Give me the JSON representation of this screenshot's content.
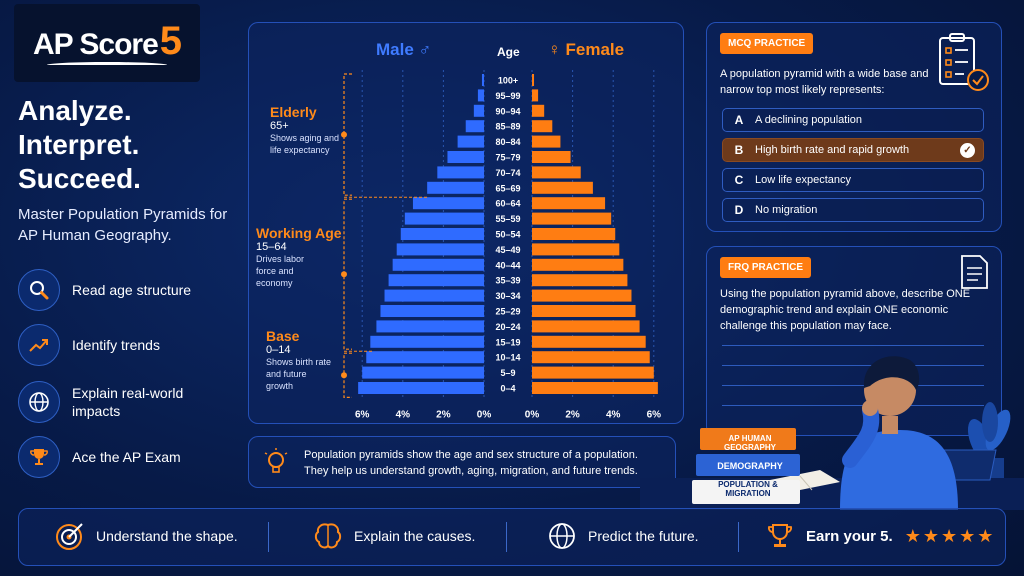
{
  "logo": {
    "text": "AP Score",
    "digit": "5"
  },
  "headline": [
    "Analyze.",
    "Interpret.",
    "Succeed."
  ],
  "subhead": "Master Population Pyramids for AP Human Geography.",
  "features": [
    {
      "icon": "magnifier-icon",
      "label": "Read age structure"
    },
    {
      "icon": "trend-up-icon",
      "label": "Identify trends"
    },
    {
      "icon": "globe-icon",
      "label": "Explain real-world impacts"
    },
    {
      "icon": "trophy-icon",
      "label": "Ace the AP Exam"
    }
  ],
  "chart_data": {
    "type": "bar",
    "orientation": "horizontal",
    "layout": "population-pyramid",
    "age_header": "Age",
    "categories": [
      "100+",
      "95–99",
      "90–94",
      "85–89",
      "80–84",
      "75–79",
      "70–74",
      "65–69",
      "60–64",
      "55–59",
      "50–54",
      "45–49",
      "40–44",
      "35–39",
      "30–34",
      "25–29",
      "20–24",
      "15–19",
      "10–14",
      "5–9",
      "0–4"
    ],
    "series": [
      {
        "name": "Male",
        "symbol": "♂",
        "color": "#2f6bff",
        "values": [
          0.1,
          0.3,
          0.5,
          0.9,
          1.3,
          1.8,
          2.3,
          2.8,
          3.5,
          3.9,
          4.1,
          4.3,
          4.5,
          4.7,
          4.9,
          5.1,
          5.3,
          5.6,
          5.8,
          6.0,
          6.2
        ]
      },
      {
        "name": "Female",
        "symbol": "♀",
        "color": "#ff7d12",
        "values": [
          0.1,
          0.3,
          0.6,
          1.0,
          1.4,
          1.9,
          2.4,
          3.0,
          3.6,
          3.9,
          4.1,
          4.3,
          4.5,
          4.7,
          4.9,
          5.1,
          5.3,
          5.6,
          5.8,
          6.0,
          6.2
        ]
      }
    ],
    "male_ticks": [
      "6%",
      "4%",
      "2%",
      "0%"
    ],
    "female_ticks": [
      "0%",
      "2%",
      "4%",
      "6%"
    ],
    "xlim": [
      0,
      6.5
    ],
    "grid": true,
    "annotations": [
      {
        "title": "Elderly",
        "range": "65+",
        "desc": "Shows aging and life expectancy"
      },
      {
        "title": "Working Age",
        "range": "15–64",
        "desc": "Drives labor force and economy"
      },
      {
        "title": "Base",
        "range": "0–14",
        "desc": "Shows birth rate and future growth"
      }
    ]
  },
  "info": {
    "icon": "lightbulb-icon",
    "text": "Population pyramids show the age and sex structure of a population. They help us understand growth, aging, migration, and future trends."
  },
  "mcq": {
    "badge": "MCQ PRACTICE",
    "question": "A population pyramid with a wide base and narrow top most likely represents:",
    "options": [
      {
        "letter": "A",
        "text": "A declining population",
        "selected": false
      },
      {
        "letter": "B",
        "text": "High birth rate and rapid growth",
        "selected": true
      },
      {
        "letter": "C",
        "text": "Low life expectancy",
        "selected": false
      },
      {
        "letter": "D",
        "text": "No migration",
        "selected": false
      }
    ]
  },
  "frq": {
    "badge": "FRQ PRACTICE",
    "prompt": "Using the population pyramid above, describe ONE demographic trend and explain ONE economic challenge this population may face."
  },
  "books": [
    "AP HUMAN GEOGRAPHY",
    "DEMOGRAPHY",
    "POPULATION & MIGRATION"
  ],
  "bottom": [
    {
      "icon": "target-icon",
      "label": "Understand the shape."
    },
    {
      "icon": "brain-icon",
      "label": "Explain the causes."
    },
    {
      "icon": "globe-icon",
      "label": "Predict the future."
    },
    {
      "icon": "trophy-icon",
      "label": "Earn your 5."
    }
  ],
  "rating_stars": 5
}
